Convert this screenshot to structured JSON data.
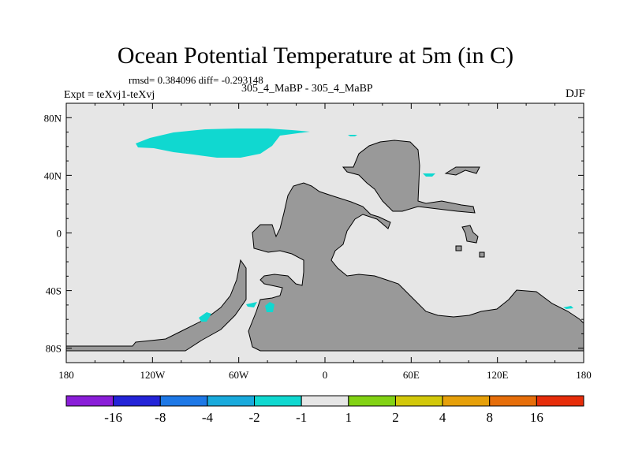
{
  "chart_data": {
    "type": "filled-contour-map",
    "title": "Ocean Potential Temperature at 5m (in C)",
    "stats": "rmsd= 0.384096 diff= -0.293148",
    "subtitle": "305_4_MaBP - 305_4_MaBP",
    "left_label": "Expt = teXvj1-teXvj",
    "right_label": "DJF",
    "x_ticks": [
      "180",
      "120W",
      "60W",
      "0",
      "60E",
      "120E",
      "180"
    ],
    "y_ticks": [
      "80N",
      "40N",
      "0",
      "40S",
      "80S"
    ],
    "xlim": [
      -180,
      180
    ],
    "ylim": [
      -90,
      90
    ],
    "background_color": "#e6e6e6",
    "land_color": "#999999",
    "colorbar": {
      "colors": [
        "#8a1ed8",
        "#2424d8",
        "#1e78e6",
        "#19aadc",
        "#10d8d0",
        "#e6e6e6",
        "#82d214",
        "#d2c80a",
        "#e6a00a",
        "#e66e0a",
        "#e62d0a"
      ],
      "labels": [
        "-16",
        "-8",
        "-4",
        "-2",
        "-1",
        "1",
        "2",
        "4",
        "8",
        "16"
      ]
    }
  }
}
